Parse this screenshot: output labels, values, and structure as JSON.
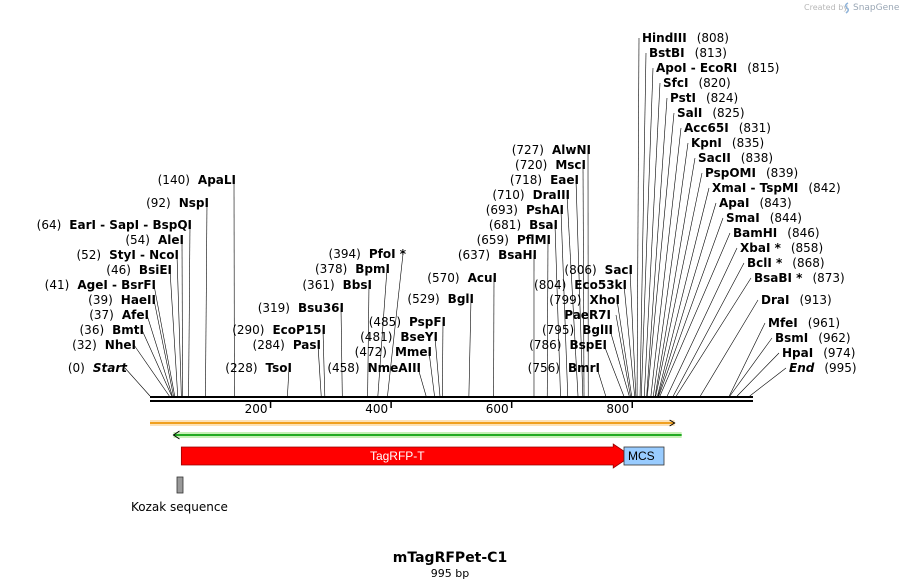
{
  "credit": {
    "prefix": "Created by",
    "brand": "SnapGene"
  },
  "map": {
    "name": "mTagRFPet-C1",
    "length_label": "995 bp",
    "length": 995,
    "ticks": [
      {
        "pos": 200,
        "label": "200"
      },
      {
        "pos": 400,
        "label": "400"
      },
      {
        "pos": 600,
        "label": "600"
      },
      {
        "pos": 800,
        "label": "800"
      }
    ]
  },
  "features": {
    "tagrfp": {
      "label": "TagRFP-T",
      "color": "#ff0000",
      "start": 52,
      "end": 795
    },
    "mcs": {
      "label": "MCS",
      "color": "#99ccff",
      "start": 795,
      "end": 862
    },
    "kozak": {
      "label": "Kozak sequence",
      "color": "#999999",
      "start": 46,
      "end": 52
    },
    "orf_forward": {
      "color": "#f0a020",
      "start": 0,
      "end": 862
    },
    "orf_reverse": {
      "color": "#22aa22",
      "start": 39,
      "end": 882
    }
  },
  "sites_left": [
    {
      "pos": 140,
      "pos_label": "(140)",
      "name": "ApaLI"
    },
    {
      "pos": 92,
      "pos_label": "(92)",
      "name": "NspI"
    },
    {
      "pos": 64,
      "pos_label": "(64)",
      "name": "EarI  - SapI  - BspQI"
    },
    {
      "pos": 54,
      "pos_label": "(54)",
      "name": "AleI"
    },
    {
      "pos": 52,
      "pos_label": "(52)",
      "name": "StyI  - NcoI"
    },
    {
      "pos": 46,
      "pos_label": "(46)",
      "name": "BsiEI"
    },
    {
      "pos": 41,
      "pos_label": "(41)",
      "name": "AgeI  - BsrFI"
    },
    {
      "pos": 39,
      "pos_label": "(39)",
      "name": "HaeII"
    },
    {
      "pos": 37,
      "pos_label": "(37)",
      "name": "AfeI"
    },
    {
      "pos": 36,
      "pos_label": "(36)",
      "name": "BmtI"
    },
    {
      "pos": 32,
      "pos_label": "(32)",
      "name": "NheI"
    },
    {
      "pos": 0,
      "pos_label": "(0)",
      "name": "Start",
      "italic": true
    }
  ],
  "sites_mid": [
    {
      "pos": 394,
      "pos_label": "(394)",
      "name": "PfoI *"
    },
    {
      "pos": 378,
      "pos_label": "(378)",
      "name": "BpmI"
    },
    {
      "pos": 361,
      "pos_label": "(361)",
      "name": "BbsI"
    },
    {
      "pos": 319,
      "pos_label": "(319)",
      "name": "Bsu36I"
    },
    {
      "pos": 290,
      "pos_label": "(290)",
      "name": "EcoP15I"
    },
    {
      "pos": 284,
      "pos_label": "(284)",
      "name": "PasI"
    },
    {
      "pos": 228,
      "pos_label": "(228)",
      "name": "TsoI"
    },
    {
      "pos": 485,
      "pos_label": "(485)",
      "name": "PspFI"
    },
    {
      "pos": 481,
      "pos_label": "(481)",
      "name": "BseYI"
    },
    {
      "pos": 472,
      "pos_label": "(472)",
      "name": "MmeI"
    },
    {
      "pos": 458,
      "pos_label": "(458)",
      "name": "NmeAIII"
    },
    {
      "pos": 570,
      "pos_label": "(570)",
      "name": "AcuI"
    },
    {
      "pos": 529,
      "pos_label": "(529)",
      "name": "BglI"
    }
  ],
  "sites_right_mid": [
    {
      "pos": 727,
      "pos_label": "(727)",
      "name": "AlwNI"
    },
    {
      "pos": 720,
      "pos_label": "(720)",
      "name": "MscI"
    },
    {
      "pos": 718,
      "pos_label": "(718)",
      "name": "EaeI"
    },
    {
      "pos": 710,
      "pos_label": "(710)",
      "name": "DraIII"
    },
    {
      "pos": 693,
      "pos_label": "(693)",
      "name": "PshAI"
    },
    {
      "pos": 681,
      "pos_label": "(681)",
      "name": "BsaI"
    },
    {
      "pos": 659,
      "pos_label": "(659)",
      "name": "PflMI"
    },
    {
      "pos": 637,
      "pos_label": "(637)",
      "name": "BsaHI"
    },
    {
      "pos": 806,
      "pos_label": "(806)",
      "name": "SacI"
    },
    {
      "pos": 804,
      "pos_label": "(804)",
      "name": "Eco53kI"
    },
    {
      "pos": 799,
      "pos_label": "(799)",
      "name": "XhoI"
    },
    {
      "pos": 797,
      "pos_label": "",
      "name": "PaeR7I"
    },
    {
      "pos": 795,
      "pos_label": "(795)",
      "name": "BglII"
    },
    {
      "pos": 786,
      "pos_label": "(786)",
      "name": "BspEI"
    },
    {
      "pos": 756,
      "pos_label": "(756)",
      "name": "BmrI"
    }
  ],
  "sites_right": [
    {
      "pos": 808,
      "pos_label": "(808)",
      "name": "HindIII"
    },
    {
      "pos": 813,
      "pos_label": "(813)",
      "name": "BstBI"
    },
    {
      "pos": 815,
      "pos_label": "(815)",
      "name": "ApoI  - EcoRI"
    },
    {
      "pos": 820,
      "pos_label": "(820)",
      "name": "SfcI"
    },
    {
      "pos": 824,
      "pos_label": "(824)",
      "name": "PstI"
    },
    {
      "pos": 825,
      "pos_label": "(825)",
      "name": "SalI"
    },
    {
      "pos": 831,
      "pos_label": "(831)",
      "name": "Acc65I"
    },
    {
      "pos": 835,
      "pos_label": "(835)",
      "name": "KpnI"
    },
    {
      "pos": 838,
      "pos_label": "(838)",
      "name": "SacII"
    },
    {
      "pos": 839,
      "pos_label": "(839)",
      "name": "PspOMI"
    },
    {
      "pos": 842,
      "pos_label": "(842)",
      "name": "XmaI  - TspMI"
    },
    {
      "pos": 843,
      "pos_label": "(843)",
      "name": "ApaI"
    },
    {
      "pos": 844,
      "pos_label": "(844)",
      "name": "SmaI"
    },
    {
      "pos": 846,
      "pos_label": "(846)",
      "name": "BamHI"
    },
    {
      "pos": 858,
      "pos_label": "(858)",
      "name": "XbaI *"
    },
    {
      "pos": 868,
      "pos_label": "(868)",
      "name": "BclI *"
    },
    {
      "pos": 873,
      "pos_label": "(873)",
      "name": "BsaBI *"
    },
    {
      "pos": 913,
      "pos_label": "(913)",
      "name": "DraI"
    },
    {
      "pos": 961,
      "pos_label": "(961)",
      "name": "MfeI"
    },
    {
      "pos": 962,
      "pos_label": "(962)",
      "name": "BsmI"
    },
    {
      "pos": 974,
      "pos_label": "(974)",
      "name": "HpaI"
    },
    {
      "pos": 995,
      "pos_label": "(995)",
      "name": "End",
      "italic": true
    }
  ]
}
